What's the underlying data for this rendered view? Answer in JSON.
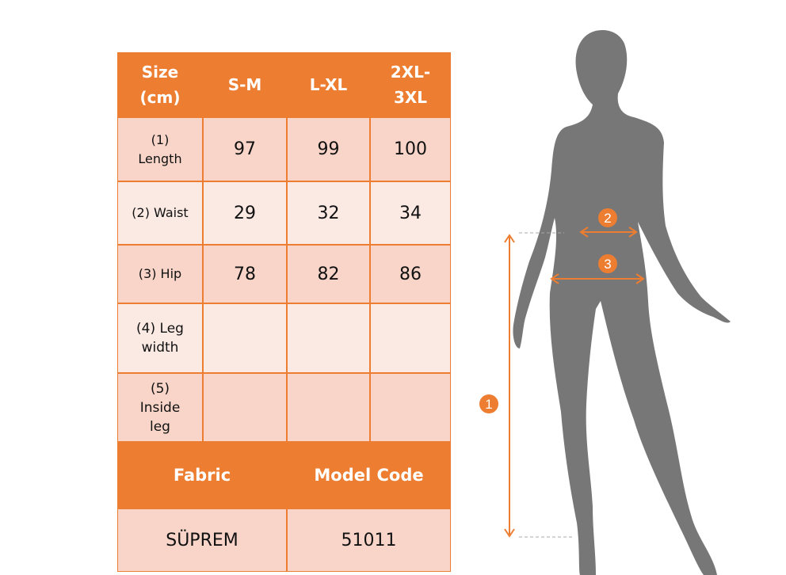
{
  "colors": {
    "accent": "#ED7D31",
    "row_dark": "#F8D5C8",
    "row_light": "#FBE9E4",
    "silhouette": "#777777"
  },
  "table": {
    "header": [
      "Size\n(cm)",
      "S-M",
      "L-XL",
      "2XL-\n3XL"
    ],
    "rows": [
      {
        "label": "(1)\nLength",
        "values": [
          "97",
          "99",
          "100"
        ]
      },
      {
        "label": "(2) Waist",
        "values": [
          "29",
          "32",
          "34"
        ]
      },
      {
        "label": "(3) Hip",
        "values": [
          "78",
          "82",
          "86"
        ]
      },
      {
        "label": "(4) Leg\nwidth",
        "values": [
          "",
          "",
          ""
        ]
      },
      {
        "label": "(5)\nInside\nleg",
        "values": [
          "",
          "",
          ""
        ]
      }
    ],
    "fabric_label": "Fabric",
    "model_code_label": "Model Code",
    "fabric_value": "SÜPREM",
    "model_code_value": "51011"
  },
  "figure": {
    "markers": [
      "1",
      "2",
      "3"
    ]
  }
}
